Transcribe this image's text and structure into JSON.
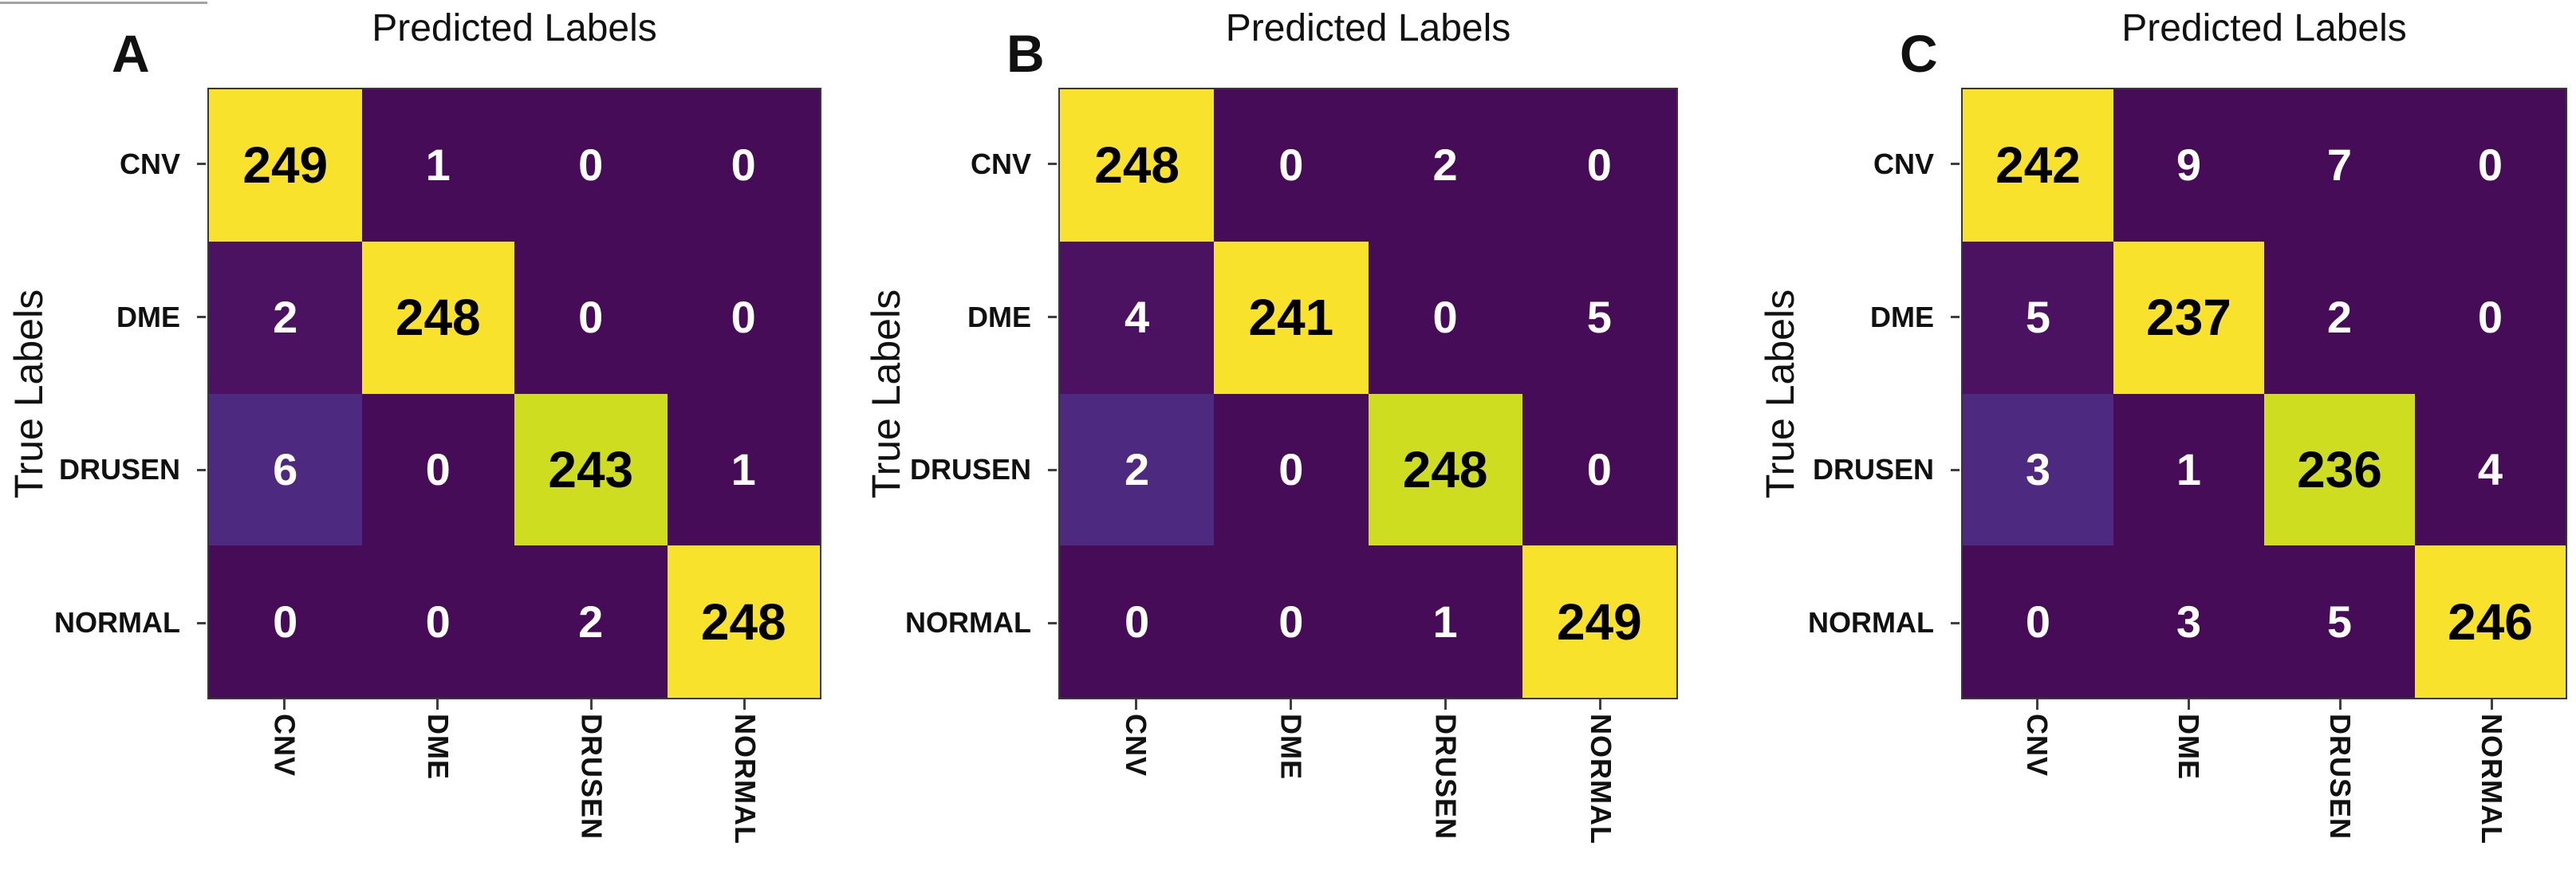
{
  "palette": {
    "cell_dark_purple": "#460c57",
    "cell_dark_purple_lighter": "#4b1262",
    "cell_light_purple": "#4d2980",
    "cell_yellow": "#f9e22b",
    "cell_yellow_green": "#cedd20",
    "value_text_on_yellow": "#000000",
    "value_text_on_purple": "#ffffff",
    "axis_text": "#111111"
  },
  "shade_pattern": [
    [
      "y",
      "d",
      "d",
      "d"
    ],
    [
      "d2",
      "y",
      "d",
      "d"
    ],
    [
      "p",
      "d",
      "yg",
      "d"
    ],
    [
      "d",
      "d",
      "d",
      "y"
    ]
  ],
  "chart_data": [
    {
      "type": "heatmap",
      "panel_label": "A",
      "title": "Predicted Labels",
      "ylabel": "True Labels",
      "x_labels": [
        "CNV",
        "DME",
        "DRUSEN",
        "NORMAL"
      ],
      "y_labels": [
        "CNV",
        "DME",
        "DRUSEN",
        "NORMAL"
      ],
      "values": [
        [
          249,
          1,
          0,
          0
        ],
        [
          2,
          248,
          0,
          0
        ],
        [
          6,
          0,
          243,
          1
        ],
        [
          0,
          0,
          2,
          248
        ]
      ],
      "colormap": "viridis",
      "legend": "none",
      "grid": "off"
    },
    {
      "type": "heatmap",
      "panel_label": "B",
      "title": "Predicted Labels",
      "ylabel": "True Labels",
      "x_labels": [
        "CNV",
        "DME",
        "DRUSEN",
        "NORMAL"
      ],
      "y_labels": [
        "CNV",
        "DME",
        "DRUSEN",
        "NORMAL"
      ],
      "values": [
        [
          248,
          0,
          2,
          0
        ],
        [
          4,
          241,
          0,
          5
        ],
        [
          2,
          0,
          248,
          0
        ],
        [
          0,
          0,
          1,
          249
        ]
      ],
      "colormap": "viridis",
      "legend": "none",
      "grid": "off"
    },
    {
      "type": "heatmap",
      "panel_label": "C",
      "title": "Predicted Labels",
      "ylabel": "True Labels",
      "x_labels": [
        "CNV",
        "DME",
        "DRUSEN",
        "NORMAL"
      ],
      "y_labels": [
        "CNV",
        "DME",
        "DRUSEN",
        "NORMAL"
      ],
      "values": [
        [
          242,
          9,
          7,
          0
        ],
        [
          5,
          237,
          2,
          0
        ],
        [
          3,
          1,
          236,
          4
        ],
        [
          0,
          3,
          5,
          246
        ]
      ],
      "colormap": "viridis",
      "legend": "none",
      "grid": "off"
    }
  ]
}
